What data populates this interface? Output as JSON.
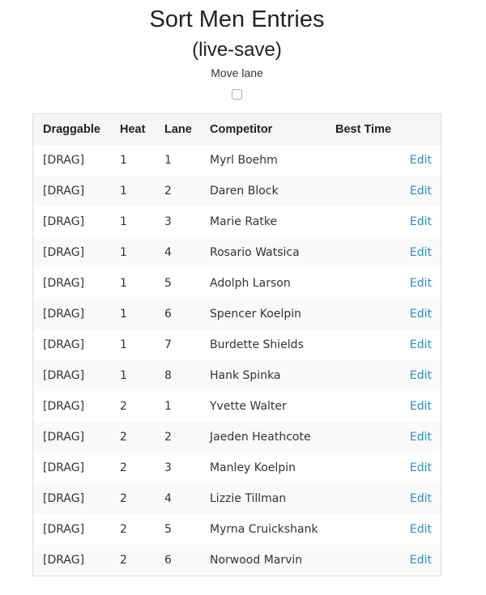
{
  "title": "Sort Men Entries",
  "subtitle": "(live-save)",
  "move_lane_label": "Move lane",
  "move_lane_checked": false,
  "table": {
    "headers": [
      "Draggable",
      "Heat",
      "Lane",
      "Competitor",
      "Best Time",
      ""
    ],
    "rows": [
      {
        "drag": "[DRAG]",
        "heat": "1",
        "lane": "1",
        "competitor": "Myrl Boehm",
        "best_time": "",
        "action": "Edit"
      },
      {
        "drag": "[DRAG]",
        "heat": "1",
        "lane": "2",
        "competitor": "Daren Block",
        "best_time": "",
        "action": "Edit"
      },
      {
        "drag": "[DRAG]",
        "heat": "1",
        "lane": "3",
        "competitor": "Marie Ratke",
        "best_time": "",
        "action": "Edit"
      },
      {
        "drag": "[DRAG]",
        "heat": "1",
        "lane": "4",
        "competitor": "Rosario Watsica",
        "best_time": "",
        "action": "Edit"
      },
      {
        "drag": "[DRAG]",
        "heat": "1",
        "lane": "5",
        "competitor": "Adolph Larson",
        "best_time": "",
        "action": "Edit"
      },
      {
        "drag": "[DRAG]",
        "heat": "1",
        "lane": "6",
        "competitor": "Spencer Koelpin",
        "best_time": "",
        "action": "Edit"
      },
      {
        "drag": "[DRAG]",
        "heat": "1",
        "lane": "7",
        "competitor": "Burdette Shields",
        "best_time": "",
        "action": "Edit"
      },
      {
        "drag": "[DRAG]",
        "heat": "1",
        "lane": "8",
        "competitor": "Hank Spinka",
        "best_time": "",
        "action": "Edit"
      },
      {
        "drag": "[DRAG]",
        "heat": "2",
        "lane": "1",
        "competitor": "Yvette Walter",
        "best_time": "",
        "action": "Edit"
      },
      {
        "drag": "[DRAG]",
        "heat": "2",
        "lane": "2",
        "competitor": "Jaeden Heathcote",
        "best_time": "",
        "action": "Edit"
      },
      {
        "drag": "[DRAG]",
        "heat": "2",
        "lane": "3",
        "competitor": "Manley Koelpin",
        "best_time": "",
        "action": "Edit"
      },
      {
        "drag": "[DRAG]",
        "heat": "2",
        "lane": "4",
        "competitor": "Lizzie Tillman",
        "best_time": "",
        "action": "Edit"
      },
      {
        "drag": "[DRAG]",
        "heat": "2",
        "lane": "5",
        "competitor": "Myrna Cruickshank",
        "best_time": "",
        "action": "Edit"
      },
      {
        "drag": "[DRAG]",
        "heat": "2",
        "lane": "6",
        "competitor": "Norwood Marvin",
        "best_time": "",
        "action": "Edit"
      }
    ]
  },
  "colors": {
    "link": "#2a8ec4",
    "header_bg": "#f5f5f5",
    "stripe_bg": "#f9f9f9"
  }
}
